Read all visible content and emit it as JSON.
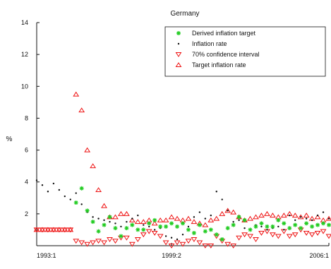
{
  "chart_data": {
    "type": "scatter",
    "title": "Germany",
    "ylabel": "%",
    "xlabel": "",
    "xlim": [
      1993,
      2006
    ],
    "ylim": [
      0,
      14
    ],
    "yticks": [
      2,
      4,
      6,
      8,
      10,
      12,
      14
    ],
    "xticks": [
      {
        "value": 1993,
        "label": "1993:1"
      },
      {
        "value": 1999,
        "label": "1999:2"
      },
      {
        "value": 2006,
        "label": "2006:1"
      }
    ],
    "grid": false,
    "legend_position": "top-right",
    "series": [
      {
        "name": "Derived inflation target",
        "marker": "asterisk",
        "color": "#22cc22",
        "x": [
          1994.75,
          1995.0,
          1995.25,
          1995.5,
          1995.75,
          1996.0,
          1996.25,
          1996.5,
          1996.75,
          1997.0,
          1997.25,
          1997.5,
          1997.75,
          1998.0,
          1998.25,
          1998.5,
          1998.75,
          1999.0,
          1999.25,
          1999.5,
          1999.75,
          2000.0,
          2000.25,
          2000.5,
          2000.75,
          2001.0,
          2001.25,
          2001.5,
          2001.75,
          2002.0,
          2002.25,
          2002.5,
          2002.75,
          2003.0,
          2003.25,
          2003.5,
          2003.75,
          2004.0,
          2004.25,
          2004.5,
          2004.75,
          2005.0,
          2005.25,
          2005.5,
          2005.75,
          2006.0
        ],
        "y": [
          2.7,
          3.6,
          2.2,
          1.5,
          0.9,
          1.3,
          1.8,
          1.1,
          0.6,
          1.1,
          1.3,
          1.0,
          1.0,
          1.4,
          1.6,
          1.2,
          1.2,
          1.4,
          1.2,
          1.4,
          1.0,
          0.8,
          1.3,
          0.9,
          1.0,
          0.7,
          0.4,
          1.1,
          1.3,
          1.8,
          1.6,
          1.0,
          1.2,
          1.4,
          1.2,
          1.2,
          1.6,
          1.4,
          1.1,
          1.3,
          1.1,
          1.4,
          1.2,
          1.3,
          1.4,
          1.3
        ]
      },
      {
        "name": "Inflation rate",
        "marker": "dot",
        "color": "#111111",
        "x": [
          1993.0,
          1993.25,
          1993.5,
          1993.75,
          1994.0,
          1994.25,
          1994.5,
          1994.75,
          1995.0,
          1995.25,
          1995.5,
          1995.75,
          1996.0,
          1996.25,
          1996.5,
          1996.75,
          1997.0,
          1997.25,
          1997.5,
          1997.75,
          1998.0,
          1998.25,
          1998.5,
          1998.75,
          1999.0,
          1999.25,
          1999.5,
          1999.75,
          2000.0,
          2000.25,
          2000.5,
          2000.75,
          2001.0,
          2001.25,
          2001.5,
          2001.75,
          2002.0,
          2002.25,
          2002.5,
          2002.75,
          2003.0,
          2003.25,
          2003.5,
          2003.75,
          2004.0,
          2004.25,
          2004.5,
          2004.75,
          2005.0,
          2005.25,
          2005.5,
          2005.75,
          2006.0
        ],
        "y": [
          4.1,
          3.8,
          3.4,
          3.9,
          3.5,
          3.1,
          2.9,
          3.3,
          2.6,
          2.1,
          1.8,
          1.7,
          1.6,
          1.5,
          1.4,
          1.2,
          1.5,
          1.7,
          1.9,
          1.3,
          1.2,
          1.0,
          1.1,
          0.6,
          0.5,
          0.4,
          0.7,
          1.2,
          1.8,
          2.1,
          1.7,
          1.9,
          3.4,
          2.9,
          2.2,
          1.5,
          1.6,
          1.1,
          1.0,
          1.3,
          1.2,
          1.0,
          1.1,
          1.2,
          1.0,
          1.9,
          1.6,
          1.8,
          1.7,
          1.6,
          1.9,
          2.1,
          1.7
        ]
      },
      {
        "name": "70% confidence interval",
        "marker": "triangle-down",
        "color": "#ee1111",
        "x": [
          1993.0,
          1993.25,
          1993.5,
          1993.75,
          1994.0,
          1994.25,
          1994.5,
          1994.75,
          1995.0,
          1995.25,
          1995.5,
          1995.75,
          1996.0,
          1996.25,
          1996.5,
          1996.75,
          1997.0,
          1997.25,
          1997.5,
          1997.75,
          1998.0,
          1998.25,
          1998.5,
          1998.75,
          1999.0,
          1999.25,
          1999.5,
          1999.75,
          2000.0,
          2000.25,
          2000.5,
          2000.75,
          2001.0,
          2001.25,
          2001.5,
          2001.75,
          2002.0,
          2002.25,
          2002.5,
          2002.75,
          2003.0,
          2003.25,
          2003.5,
          2003.75,
          2004.0,
          2004.25,
          2004.5,
          2004.75,
          2005.0,
          2005.25,
          2005.5,
          2005.75,
          2006.0
        ],
        "y": [
          1.0,
          1.0,
          1.0,
          1.0,
          1.0,
          1.0,
          1.0,
          0.3,
          0.2,
          0.1,
          0.2,
          0.3,
          0.2,
          0.4,
          0.3,
          0.5,
          0.5,
          0.1,
          0.4,
          0.7,
          0.9,
          0.8,
          0.6,
          0.2,
          0.0,
          0.2,
          0.1,
          0.3,
          0.4,
          0.2,
          0.0,
          0.0,
          0.6,
          0.3,
          0.1,
          0.0,
          0.5,
          0.7,
          0.6,
          0.4,
          0.8,
          0.9,
          0.7,
          0.6,
          0.9,
          0.6,
          0.7,
          1.0,
          0.8,
          0.7,
          0.8,
          0.9,
          0.6
        ]
      },
      {
        "name": "Target inflation rate",
        "marker": "triangle-up",
        "color": "#ee1111",
        "x": [
          1993.0,
          1993.25,
          1993.5,
          1993.75,
          1994.0,
          1994.25,
          1994.5,
          1994.75,
          1995.0,
          1995.25,
          1995.5,
          1995.75,
          1996.0,
          1996.25,
          1996.5,
          1996.75,
          1997.0,
          1997.25,
          1997.5,
          1997.75,
          1998.0,
          1998.25,
          1998.5,
          1998.75,
          1999.0,
          1999.25,
          1999.5,
          1999.75,
          2000.0,
          2000.25,
          2000.5,
          2000.75,
          2001.0,
          2001.25,
          2001.5,
          2001.75,
          2002.0,
          2002.25,
          2002.5,
          2002.75,
          2003.0,
          2003.25,
          2003.5,
          2003.75,
          2004.0,
          2004.25,
          2004.5,
          2004.75,
          2005.0,
          2005.25,
          2005.5,
          2005.75,
          2006.0
        ],
        "y": [
          1.0,
          1.0,
          1.0,
          1.0,
          1.0,
          1.0,
          1.0,
          9.5,
          8.5,
          6.0,
          5.0,
          3.5,
          2.5,
          1.8,
          1.8,
          2.0,
          2.0,
          1.6,
          1.5,
          1.5,
          1.6,
          1.4,
          1.6,
          1.6,
          1.8,
          1.7,
          1.6,
          1.7,
          1.5,
          1.4,
          1.3,
          1.6,
          1.7,
          2.0,
          2.2,
          2.1,
          1.8,
          1.6,
          1.7,
          1.8,
          1.9,
          2.0,
          1.9,
          1.8,
          1.9,
          2.0,
          1.9,
          1.8,
          1.9,
          1.7,
          1.8,
          1.6,
          1.7
        ]
      }
    ]
  },
  "legend_lines": [
    "Derived inflation target",
    "Inflation rate",
    "70% confidence interval",
    "Target inflation rate"
  ]
}
